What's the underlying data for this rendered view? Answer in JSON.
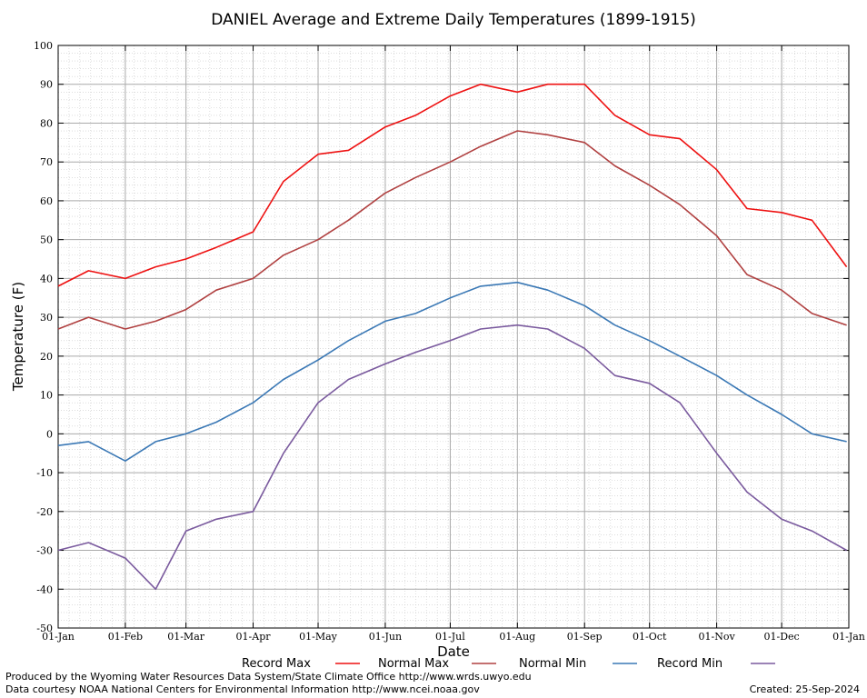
{
  "chart_data": {
    "type": "line",
    "title": "DANIEL Average and Extreme Daily Temperatures (1899-1915)",
    "xlabel": "Date",
    "ylabel": "Temperature (F)",
    "ylim": [
      -50,
      100
    ],
    "yticks": [
      -50,
      -40,
      -30,
      -20,
      -10,
      0,
      10,
      20,
      30,
      40,
      50,
      60,
      70,
      80,
      90,
      100
    ],
    "xticks": [
      "01-Jan",
      "01-Feb",
      "01-Mar",
      "01-Apr",
      "01-May",
      "01-Jun",
      "01-Jul",
      "01-Aug",
      "01-Sep",
      "01-Oct",
      "01-Nov",
      "01-Dec",
      "01-Jan"
    ],
    "grid": true,
    "legend_position": "bottom",
    "series": [
      {
        "name": "Record Max",
        "color": "#ee1111",
        "x": [
          "01-Jan",
          "15-Jan",
          "01-Feb",
          "15-Feb",
          "01-Mar",
          "15-Mar",
          "01-Apr",
          "15-Apr",
          "01-May",
          "15-May",
          "01-Jun",
          "15-Jun",
          "01-Jul",
          "15-Jul",
          "01-Aug",
          "15-Aug",
          "01-Sep",
          "15-Sep",
          "01-Oct",
          "15-Oct",
          "01-Nov",
          "15-Nov",
          "01-Dec",
          "15-Dec",
          "31-Dec"
        ],
        "values": [
          38,
          42,
          40,
          43,
          45,
          48,
          52,
          65,
          72,
          73,
          79,
          82,
          87,
          90,
          88,
          90,
          90,
          82,
          77,
          76,
          68,
          58,
          57,
          55,
          43
        ]
      },
      {
        "name": "Normal Max",
        "color": "#b04040",
        "x": [
          "01-Jan",
          "15-Jan",
          "01-Feb",
          "15-Feb",
          "01-Mar",
          "15-Mar",
          "01-Apr",
          "15-Apr",
          "01-May",
          "15-May",
          "01-Jun",
          "15-Jun",
          "01-Jul",
          "15-Jul",
          "01-Aug",
          "15-Aug",
          "01-Sep",
          "15-Sep",
          "01-Oct",
          "15-Oct",
          "01-Nov",
          "15-Nov",
          "01-Dec",
          "15-Dec",
          "31-Dec"
        ],
        "values": [
          27,
          30,
          27,
          29,
          32,
          37,
          40,
          46,
          50,
          55,
          62,
          66,
          70,
          74,
          78,
          77,
          75,
          69,
          64,
          59,
          51,
          41,
          37,
          31,
          28
        ]
      },
      {
        "name": "Normal Min",
        "color": "#3a78b5",
        "x": [
          "01-Jan",
          "15-Jan",
          "01-Feb",
          "15-Feb",
          "01-Mar",
          "15-Mar",
          "01-Apr",
          "15-Apr",
          "01-May",
          "15-May",
          "01-Jun",
          "15-Jun",
          "01-Jul",
          "15-Jul",
          "01-Aug",
          "15-Aug",
          "01-Sep",
          "15-Sep",
          "01-Oct",
          "15-Oct",
          "01-Nov",
          "15-Nov",
          "01-Dec",
          "15-Dec",
          "31-Dec"
        ],
        "values": [
          -3,
          -2,
          -7,
          -2,
          0,
          3,
          8,
          14,
          19,
          24,
          29,
          31,
          35,
          38,
          39,
          37,
          33,
          28,
          24,
          20,
          15,
          10,
          5,
          0,
          -2
        ]
      },
      {
        "name": "Record Min",
        "color": "#7a5a9e",
        "x": [
          "01-Jan",
          "15-Jan",
          "01-Feb",
          "15-Feb",
          "01-Mar",
          "15-Mar",
          "01-Apr",
          "15-Apr",
          "01-May",
          "15-May",
          "01-Jun",
          "15-Jun",
          "01-Jul",
          "15-Jul",
          "01-Aug",
          "15-Aug",
          "01-Sep",
          "15-Sep",
          "01-Oct",
          "15-Oct",
          "01-Nov",
          "15-Nov",
          "01-Dec",
          "15-Dec",
          "31-Dec"
        ],
        "values": [
          -30,
          -28,
          -32,
          -40,
          -25,
          -22,
          -20,
          -5,
          8,
          14,
          18,
          21,
          24,
          27,
          28,
          27,
          22,
          15,
          13,
          8,
          -5,
          -15,
          -22,
          -25,
          -30
        ]
      }
    ]
  },
  "footer": {
    "credit_line1": "Produced by the Wyoming Water Resources Data System/State Climate Office http://www.wrds.uwyo.edu",
    "credit_line2": "Data courtesy NOAA National Centers for Environmental Information http://www.ncei.noaa.gov",
    "created": "Created:  25-Sep-2024"
  }
}
